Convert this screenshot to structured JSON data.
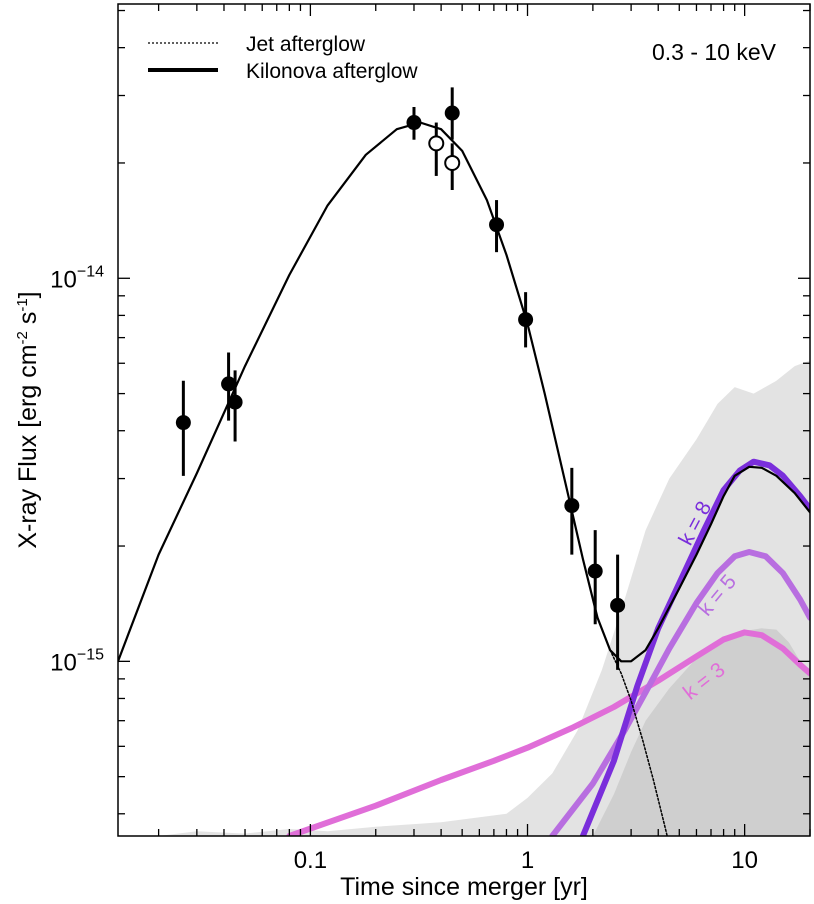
{
  "chart_data": {
    "type": "scatter",
    "xlabel": "Time since merger [yr]",
    "ylabel": "X-ray Flux [erg cm",
    "ylabel_sup1": "-2",
    "ylabel_mid": " s",
    "ylabel_sup2": "-1",
    "ylabel_end": "]",
    "annotation": "0.3 - 10 keV",
    "x_scale": "log",
    "y_scale": "log",
    "xlim": [
      0.013,
      20
    ],
    "ylim": [
      3.5e-16,
      5.2e-14
    ],
    "x_ticks": [
      {
        "value": 0.1,
        "label": "0.1"
      },
      {
        "value": 1,
        "label": "1"
      },
      {
        "value": 10,
        "label": "10"
      }
    ],
    "y_ticks": [
      {
        "value": 1e-15,
        "base": "10",
        "exp": "−15"
      },
      {
        "value": 1e-14,
        "base": "10",
        "exp": "−14"
      }
    ],
    "legend": {
      "position": "top-left",
      "entries": [
        {
          "label": "Jet afterglow",
          "style": "dotted"
        },
        {
          "label": "Kilonova afterglow",
          "style": "solid-thick"
        }
      ]
    },
    "detections": [
      {
        "t": 0.026,
        "flux": 4.2e-15,
        "lo": 3.05e-15,
        "hi": 5.4e-15
      },
      {
        "t": 0.042,
        "flux": 5.3e-15,
        "lo": 4.25e-15,
        "hi": 6.4e-15
      },
      {
        "t": 0.045,
        "flux": 4.75e-15,
        "lo": 3.75e-15,
        "hi": 5.75e-15
      },
      {
        "t": 0.3,
        "flux": 2.55e-14,
        "lo": 2.3e-14,
        "hi": 2.8e-14
      },
      {
        "t": 0.45,
        "flux": 2.7e-14,
        "lo": 2.3e-14,
        "hi": 3.15e-14
      },
      {
        "t": 0.72,
        "flux": 1.38e-14,
        "lo": 1.17e-14,
        "hi": 1.6e-14
      },
      {
        "t": 0.98,
        "flux": 7.8e-15,
        "lo": 6.6e-15,
        "hi": 9.2e-15
      },
      {
        "t": 1.6,
        "flux": 2.55e-15,
        "lo": 1.9e-15,
        "hi": 3.2e-15
      },
      {
        "t": 2.05,
        "flux": 1.72e-15,
        "lo": 1.25e-15,
        "hi": 2.2e-15
      },
      {
        "t": 2.6,
        "flux": 1.4e-15,
        "lo": 9.5e-16,
        "hi": 1.9e-15
      }
    ],
    "open_points": [
      {
        "t": 0.38,
        "flux": 2.25e-14,
        "lo": 1.85e-14,
        "hi": 2.55e-14
      },
      {
        "t": 0.45,
        "flux": 2e-14,
        "lo": 1.7e-14,
        "hi": 2.25e-14
      }
    ],
    "series": [
      {
        "label": "",
        "color": "#000000",
        "style": "solid",
        "points": [
          [
            0.013,
            1e-15
          ],
          [
            0.02,
            1.9e-15
          ],
          [
            0.03,
            3.1e-15
          ],
          [
            0.05,
            5.9e-15
          ],
          [
            0.08,
            1.02e-14
          ],
          [
            0.12,
            1.55e-14
          ],
          [
            0.18,
            2.1e-14
          ],
          [
            0.25,
            2.45e-14
          ],
          [
            0.32,
            2.55e-14
          ],
          [
            0.4,
            2.45e-14
          ],
          [
            0.5,
            2.15e-14
          ],
          [
            0.65,
            1.6e-14
          ],
          [
            0.8,
            1.15e-14
          ],
          [
            1.0,
            7.6e-15
          ],
          [
            1.2,
            5e-15
          ],
          [
            1.5,
            2.9e-15
          ],
          [
            1.8,
            1.85e-15
          ],
          [
            2.1,
            1.3e-15
          ],
          [
            2.4,
            1.07e-15
          ],
          [
            2.7,
            1e-15
          ],
          [
            3.0,
            1e-15
          ],
          [
            3.5,
            1.07e-15
          ],
          [
            4.0,
            1.22e-15
          ],
          [
            5.0,
            1.55e-15
          ],
          [
            6.0,
            1.9e-15
          ],
          [
            7.0,
            2.28e-15
          ],
          [
            8.0,
            2.7e-15
          ],
          [
            9.0,
            3.05e-15
          ],
          [
            10.5,
            3.22e-15
          ],
          [
            12.0,
            3.2e-15
          ],
          [
            14.0,
            3.05e-15
          ],
          [
            17.0,
            2.75e-15
          ],
          [
            20.0,
            2.45e-15
          ]
        ]
      },
      {
        "label": "",
        "color": "#000000",
        "style": "dotted",
        "points": [
          [
            2.4,
            1.07e-15
          ],
          [
            2.7,
            9.3e-16
          ],
          [
            3.0,
            7.9e-16
          ],
          [
            3.4,
            6.2e-16
          ],
          [
            3.8,
            4.9e-16
          ],
          [
            4.2,
            3.9e-16
          ],
          [
            4.4,
            3.5e-16
          ]
        ]
      },
      {
        "label": "k = 8",
        "color": "#7a2edb",
        "style": "thick",
        "points": [
          [
            1.8,
            3.5e-16
          ],
          [
            2.5,
            5.5e-16
          ],
          [
            3.2,
            8.6e-16
          ],
          [
            4.0,
            1.22e-15
          ],
          [
            5.0,
            1.6e-15
          ],
          [
            6.5,
            2.2e-15
          ],
          [
            8.0,
            2.8e-15
          ],
          [
            9.5,
            3.15e-15
          ],
          [
            11.0,
            3.32e-15
          ],
          [
            13.0,
            3.25e-15
          ],
          [
            15.0,
            3.05e-15
          ],
          [
            18.0,
            2.7e-15
          ],
          [
            20.0,
            2.5e-15
          ]
        ]
      },
      {
        "label": "k = 5",
        "color": "#b86ee0",
        "style": "thick",
        "points": [
          [
            1.3,
            3.5e-16
          ],
          [
            2.0,
            4.8e-16
          ],
          [
            2.8,
            6.6e-16
          ],
          [
            3.5,
            8.3e-16
          ],
          [
            4.5,
            1.08e-15
          ],
          [
            6.0,
            1.42e-15
          ],
          [
            7.5,
            1.7e-15
          ],
          [
            9.0,
            1.88e-15
          ],
          [
            10.5,
            1.93e-15
          ],
          [
            12.5,
            1.88e-15
          ],
          [
            15.0,
            1.7e-15
          ],
          [
            18.0,
            1.45e-15
          ],
          [
            20.0,
            1.3e-15
          ]
        ]
      },
      {
        "label": "k = 3",
        "color": "#e06ed8",
        "style": "thick",
        "points": [
          [
            0.08,
            3.5e-16
          ],
          [
            0.2,
            4.2e-16
          ],
          [
            0.4,
            4.9e-16
          ],
          [
            0.7,
            5.5e-16
          ],
          [
            1.0,
            5.95e-16
          ],
          [
            1.6,
            6.7e-16
          ],
          [
            2.5,
            7.6e-16
          ],
          [
            4.0,
            8.9e-16
          ],
          [
            6.0,
            1.03e-15
          ],
          [
            8.0,
            1.14e-15
          ],
          [
            10.0,
            1.19e-15
          ],
          [
            12.0,
            1.17e-15
          ],
          [
            15.0,
            1.08e-15
          ],
          [
            18.0,
            9.8e-16
          ],
          [
            20.0,
            9.3e-16
          ]
        ]
      }
    ],
    "bands": [
      {
        "label": "",
        "color": "#e3e3e3",
        "upper": [
          [
            0.02,
            3.5e-16
          ],
          [
            0.03,
            3.6e-16
          ],
          [
            0.05,
            3.55e-16
          ],
          [
            0.08,
            3.65e-16
          ],
          [
            0.12,
            3.6e-16
          ],
          [
            0.2,
            3.7e-16
          ],
          [
            0.4,
            3.8e-16
          ],
          [
            0.8,
            4e-16
          ],
          [
            1.0,
            4.4e-16
          ],
          [
            1.3,
            5.1e-16
          ],
          [
            1.7,
            6.6e-16
          ],
          [
            2.2,
            9.5e-16
          ],
          [
            2.8,
            1.45e-15
          ],
          [
            3.5,
            2.2e-15
          ],
          [
            4.5,
            3e-15
          ],
          [
            6.0,
            3.8e-15
          ],
          [
            7.5,
            4.7e-15
          ],
          [
            9.0,
            5.2e-15
          ],
          [
            11.0,
            5e-15
          ],
          [
            14.0,
            5.4e-15
          ],
          [
            17.0,
            5.9e-15
          ],
          [
            20.0,
            6.1e-15
          ]
        ]
      },
      {
        "label": "",
        "color": "#cfcfcf",
        "upper": [
          [
            2.0,
            3.5e-16
          ],
          [
            2.5,
            4.5e-16
          ],
          [
            3.0,
            5.8e-16
          ],
          [
            3.5,
            7e-16
          ],
          [
            4.5,
            8.5e-16
          ],
          [
            6.0,
            1.02e-15
          ],
          [
            8.0,
            1.15e-15
          ],
          [
            10.0,
            1.2e-15
          ],
          [
            12.0,
            1.22e-15
          ],
          [
            14.0,
            1.21e-15
          ],
          [
            16.0,
            1.12e-15
          ],
          [
            18.0,
            1e-15
          ],
          [
            20.0,
            9.5e-16
          ]
        ]
      }
    ],
    "curve_labels": [
      {
        "text": "k = 8",
        "t": 6.3,
        "flux": 2.25e-15,
        "rotate": -62,
        "color": "#7a2edb"
      },
      {
        "text": "k = 5",
        "t": 7.9,
        "flux": 1.45e-15,
        "rotate": -50,
        "color": "#b86ee0"
      },
      {
        "text": "k = 3",
        "t": 6.8,
        "flux": 8.6e-16,
        "rotate": -38,
        "color": "#e06ed8"
      }
    ]
  }
}
